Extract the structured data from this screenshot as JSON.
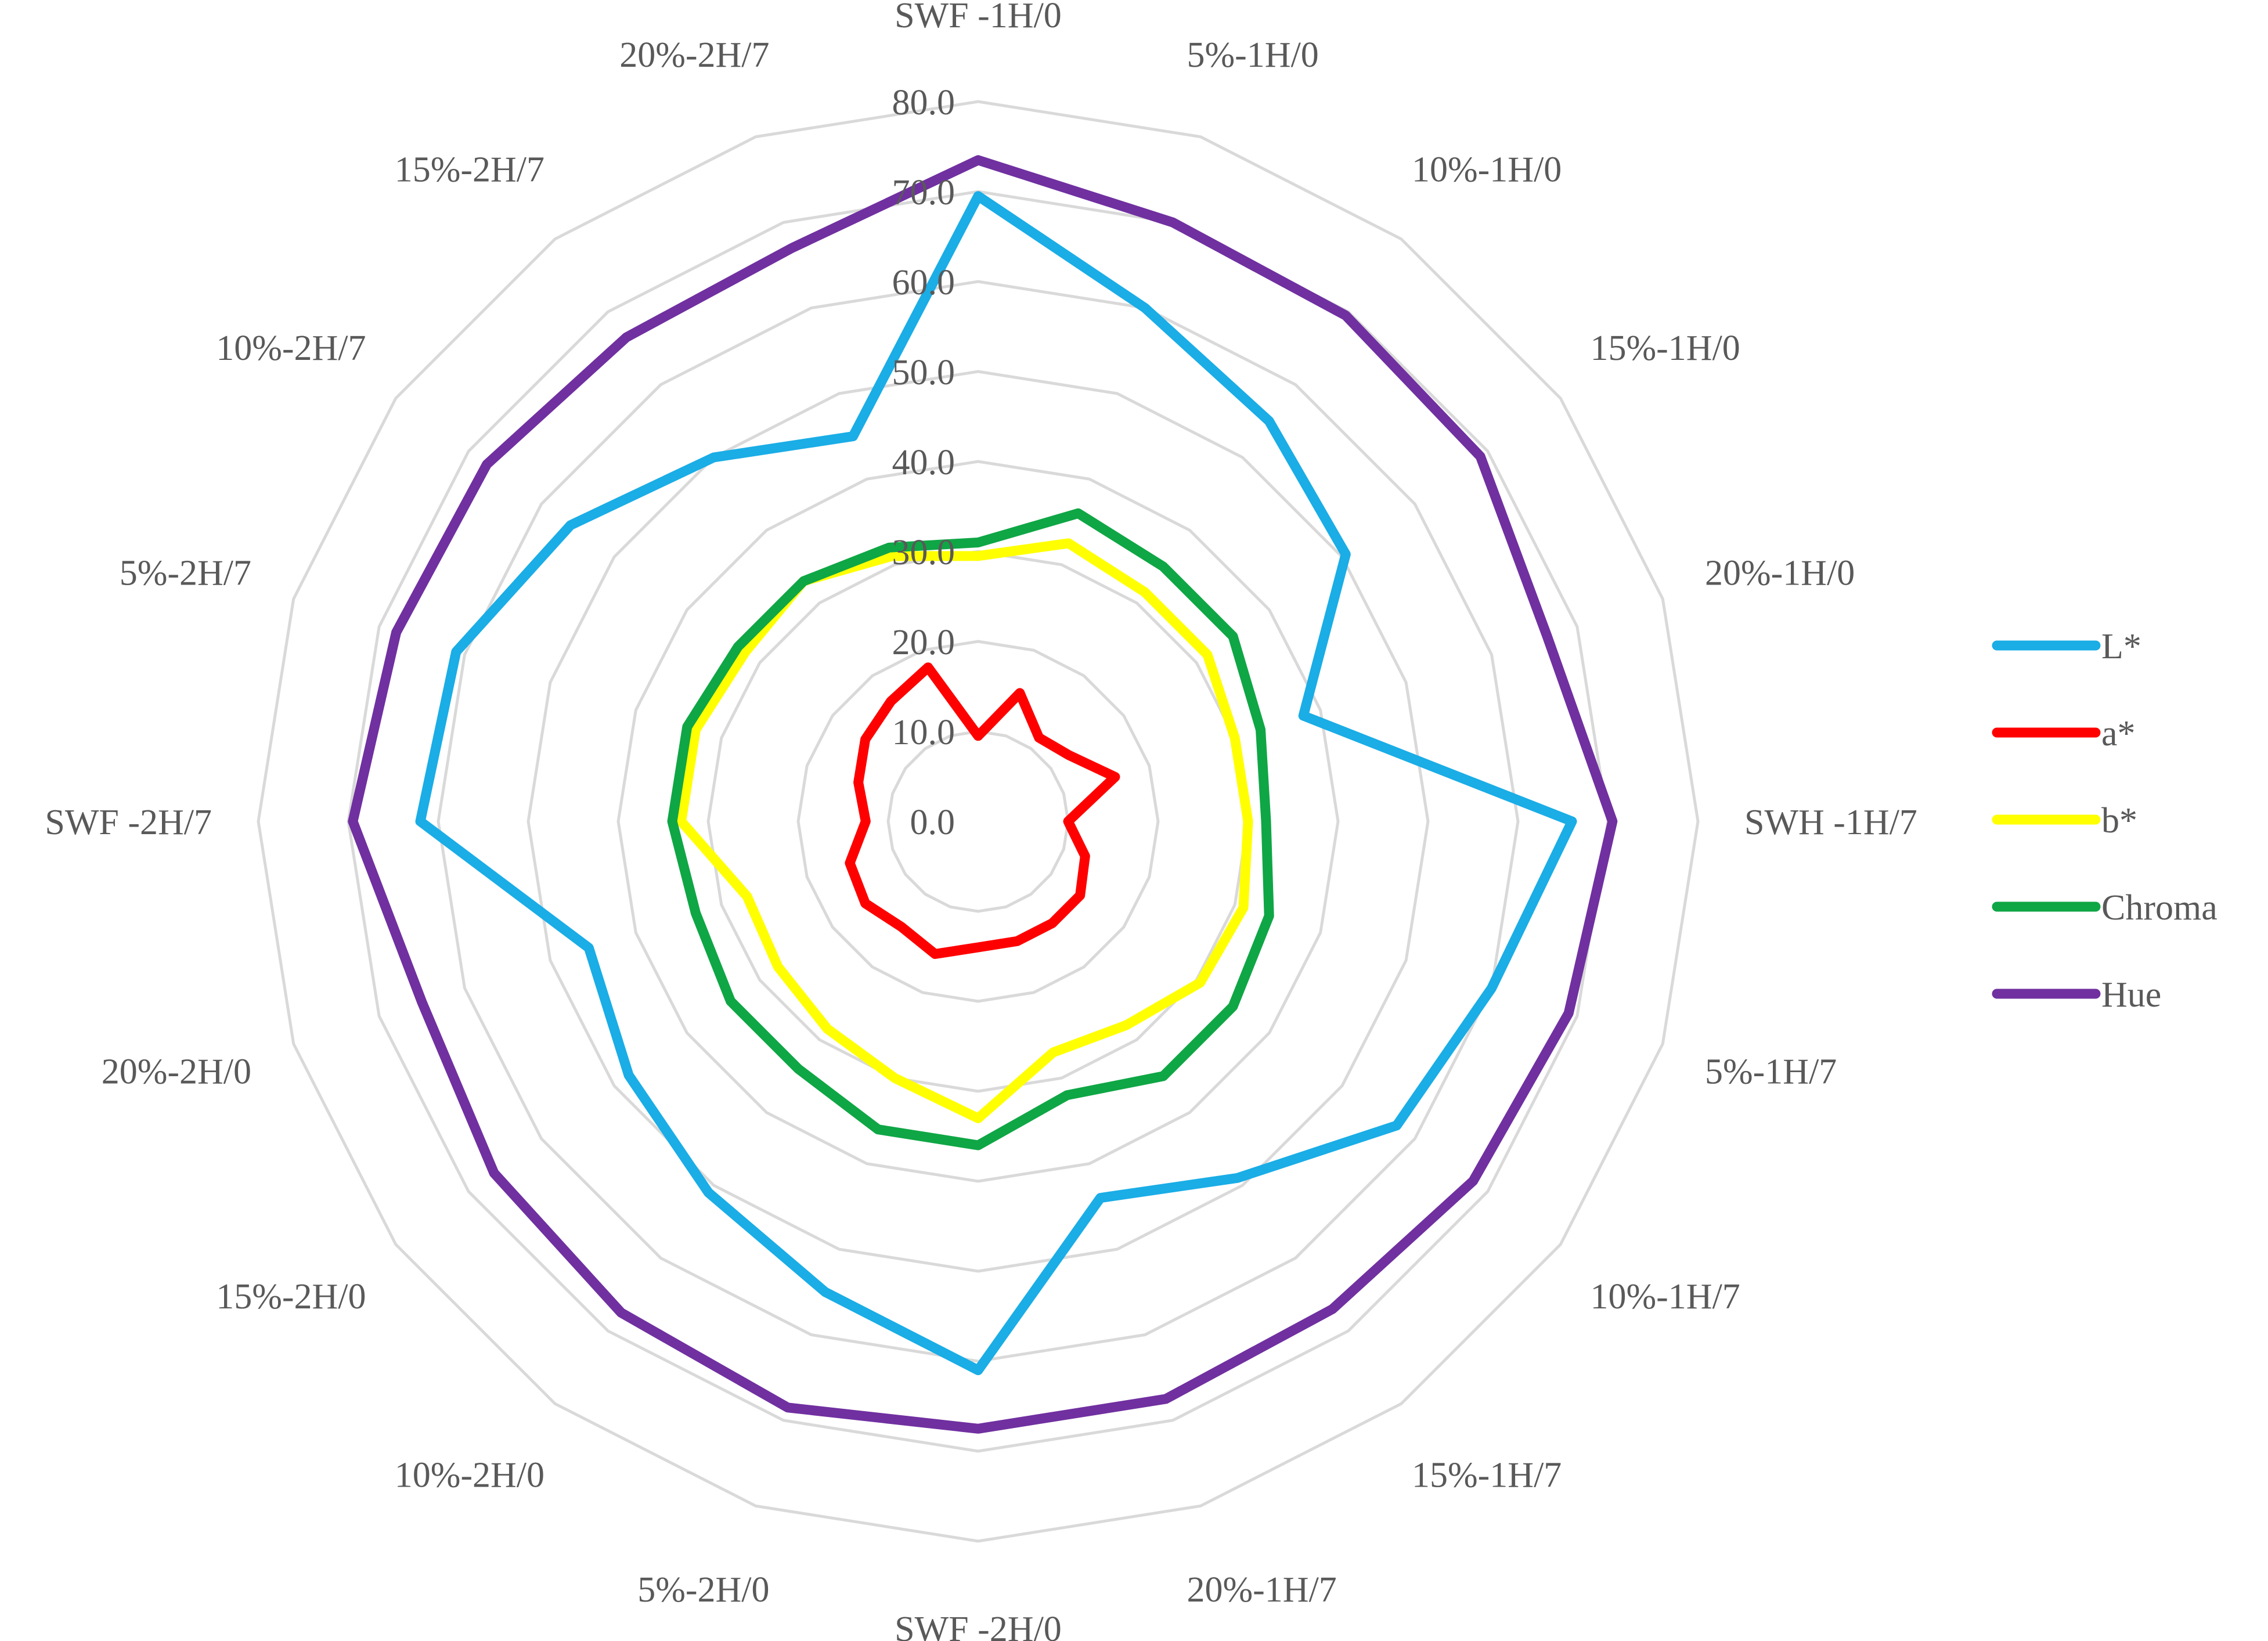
{
  "chart_data": {
    "type": "radar",
    "title": "",
    "categories": [
      "SWF -1H/0",
      "5%-1H/0",
      "10%-1H/0",
      "15%-1H/0",
      "20%-1H/0",
      "SWH -1H/7",
      "5%-1H/7",
      "10%-1H/7",
      "15%-1H/7",
      "20%-1H/7",
      "SWF -2H/0",
      "5%-2H/0",
      "10%-2H/0",
      "15%-2H/0",
      "20%-2H/0",
      "SWF -2H/7",
      "5%-2H/7",
      "10%-2H/7",
      "15%-2H/7",
      "20%-2H/7"
    ],
    "rlim": [
      0,
      80
    ],
    "ticks": [
      "0.0",
      "10.0",
      "20.0",
      "30.0",
      "40.0",
      "50.0",
      "60.0",
      "70.0",
      "80.0"
    ],
    "grid": true,
    "legend_position": "right",
    "series": [
      {
        "name": "L*",
        "color": "#1AADE6",
        "values": [
          69.5,
          60.0,
          55.0,
          50.5,
          38.0,
          66.0,
          60.0,
          57.5,
          49.0,
          44.0,
          61.0,
          55.0,
          51.0,
          48.0,
          45.5,
          62.0,
          61.0,
          56.0,
          50.0,
          45.0
        ]
      },
      {
        "name": "a*",
        "color": "#FF0000",
        "values": [
          9.5,
          15.0,
          11.5,
          12.5,
          16.0,
          10.0,
          12.5,
          14.0,
          14.0,
          14.0,
          14.0,
          15.5,
          14.5,
          15.5,
          15.0,
          12.5,
          14.0,
          15.5,
          16.5,
          18.0
        ]
      },
      {
        "name": "b*",
        "color": "#FFFF00",
        "values": [
          29.5,
          32.5,
          31.5,
          31.5,
          30.0,
          30.0,
          31.0,
          30.5,
          28.0,
          27.0,
          33.0,
          30.0,
          28.5,
          27.5,
          27.0,
          33.0,
          33.0,
          32.0,
          33.0,
          31.0
        ]
      },
      {
        "name": "Chroma",
        "color": "#0FA645",
        "values": [
          31.0,
          36.0,
          35.0,
          35.0,
          33.0,
          32.0,
          34.0,
          35.0,
          35.0,
          32.0,
          36.0,
          36.0,
          34.0,
          34.0,
          33.0,
          34.0,
          34.0,
          33.0,
          33.0,
          32.0
        ]
      },
      {
        "name": "Hue",
        "color": "#7030A0",
        "values": [
          73.5,
          70.0,
          69.5,
          69.0,
          66.5,
          70.5,
          69.0,
          68.0,
          67.0,
          67.5,
          67.5,
          68.5,
          67.5,
          66.5,
          65.0,
          69.5,
          68.0,
          67.5,
          66.5,
          67.0
        ]
      }
    ]
  }
}
